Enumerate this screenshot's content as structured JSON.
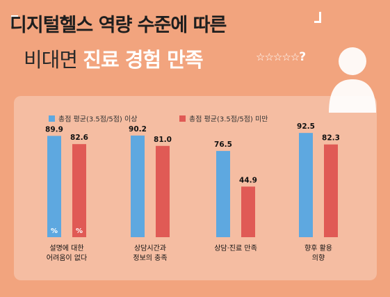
{
  "title": {
    "line1": "디지털헬스 역량 수준에 따른",
    "line2_plain": "비대면",
    "line2_emph": "진료 경험 만족"
  },
  "rating_graphic": {
    "stars": "☆☆☆☆☆",
    "question": "?"
  },
  "colors": {
    "background": "#f2a47e",
    "series_above": "#5ea8e0",
    "series_below": "#e05a55"
  },
  "chart_data": {
    "type": "bar",
    "title": "",
    "xlabel": "",
    "ylabel": "",
    "ylim": [
      0,
      100
    ],
    "grid": false,
    "legend_position": "top-left",
    "unit_mark": "%",
    "categories": [
      [
        "설명에 대한",
        "어려움이 없다"
      ],
      [
        "상담시간과",
        "정보의 충족"
      ],
      [
        "상담·진료 만족"
      ],
      [
        "향후 활용",
        "의향"
      ]
    ],
    "series": [
      {
        "name": "총점 평균(3.5점/5점) 이상",
        "values": [
          89.9,
          90.2,
          76.5,
          92.5
        ],
        "labels": [
          "89.9",
          "90.2",
          "76.5",
          "92.5"
        ]
      },
      {
        "name": "총점 평균(3.5점/5점) 미만",
        "values": [
          82.6,
          81.0,
          44.9,
          82.3
        ],
        "labels": [
          "82.6",
          "81.0",
          "44.9",
          "82.3"
        ]
      }
    ]
  }
}
